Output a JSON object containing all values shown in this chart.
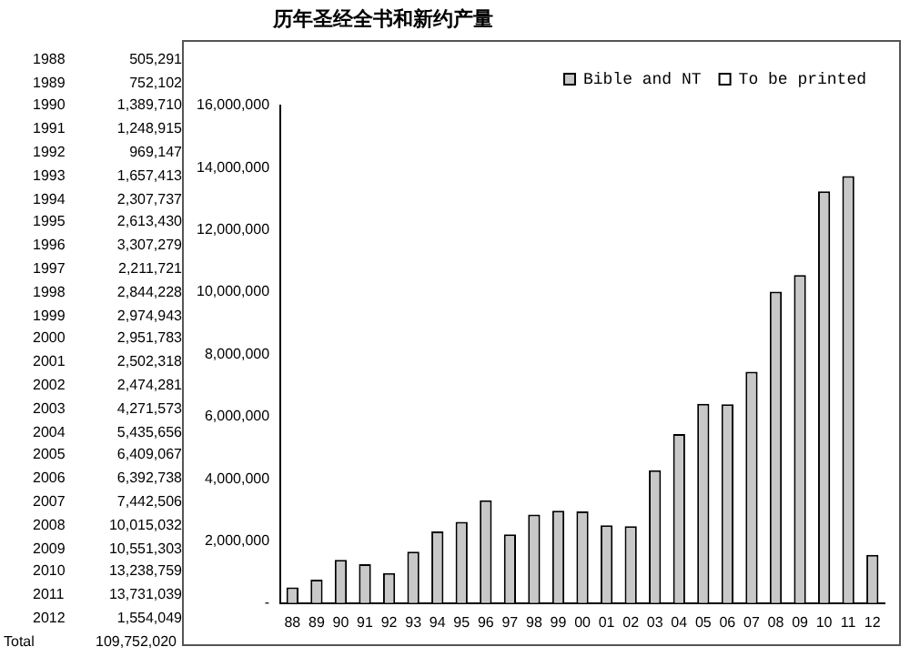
{
  "chart_data": {
    "type": "bar",
    "title": "历年圣经全书和新约产量",
    "categories": [
      "88",
      "89",
      "90",
      "91",
      "92",
      "93",
      "94",
      "95",
      "96",
      "97",
      "98",
      "99",
      "00",
      "01",
      "02",
      "03",
      "04",
      "05",
      "06",
      "07",
      "08",
      "09",
      "10",
      "11",
      "12"
    ],
    "series": [
      {
        "name": "Bible and NT",
        "color": "#c8c8c8",
        "values": [
          505291,
          752102,
          1389710,
          1248915,
          969147,
          1657413,
          2307737,
          2613430,
          3307279,
          2211721,
          2844228,
          2974943,
          2951783,
          2502318,
          2474281,
          4271573,
          5435656,
          6409067,
          6392738,
          7442506,
          10015032,
          10551303,
          13238759,
          13731039,
          1554049
        ]
      },
      {
        "name": "To be printed",
        "color": "#ffffff",
        "values": [
          null,
          null,
          null,
          null,
          null,
          null,
          null,
          null,
          null,
          null,
          null,
          null,
          null,
          null,
          null,
          null,
          null,
          null,
          null,
          null,
          null,
          null,
          null,
          null,
          null
        ]
      }
    ],
    "value_labels": [
      "505,291",
      "752,102",
      "1,389,710",
      "1,248,915",
      "969,147",
      "1,657,413",
      "2,307,737",
      "2,613,430",
      "3,307,279",
      "2,211,721",
      "2,844,228",
      "2,974,943",
      "2,951,783",
      "2,502,318",
      "2,474,281",
      "4,271,573",
      "5,435,656",
      "6,409,067",
      "6,392,738",
      "7,442,506",
      "10,015,032",
      "10,551,303",
      "13,238,759",
      "13,731,039",
      "1,554,049"
    ],
    "annotations": [
      "1988",
      "1989",
      "1990",
      "1991",
      "1992",
      "1993",
      "1994",
      "1995",
      "1996",
      "1997",
      "1998",
      "1999",
      "2000",
      "2001",
      "2002",
      "2003",
      "2004",
      "2005",
      "2006",
      "2007",
      "2008",
      "2009",
      "2010",
      "2011",
      "2012",
      "Total",
      "109,752,020"
    ],
    "ylim": [
      0,
      16000000
    ],
    "yticks": [
      {
        "value": 0,
        "label": "-"
      },
      {
        "value": 2000000,
        "label": "2,000,000"
      },
      {
        "value": 4000000,
        "label": "4,000,000"
      },
      {
        "value": 6000000,
        "label": "6,000,000"
      },
      {
        "value": 8000000,
        "label": "8,000,000"
      },
      {
        "value": 10000000,
        "label": "10,000,000"
      },
      {
        "value": 12000000,
        "label": "12,000,000"
      },
      {
        "value": 14000000,
        "label": "14,000,000"
      },
      {
        "value": 16000000,
        "label": "16,000,000"
      }
    ],
    "grid": false,
    "legend": "top right"
  }
}
